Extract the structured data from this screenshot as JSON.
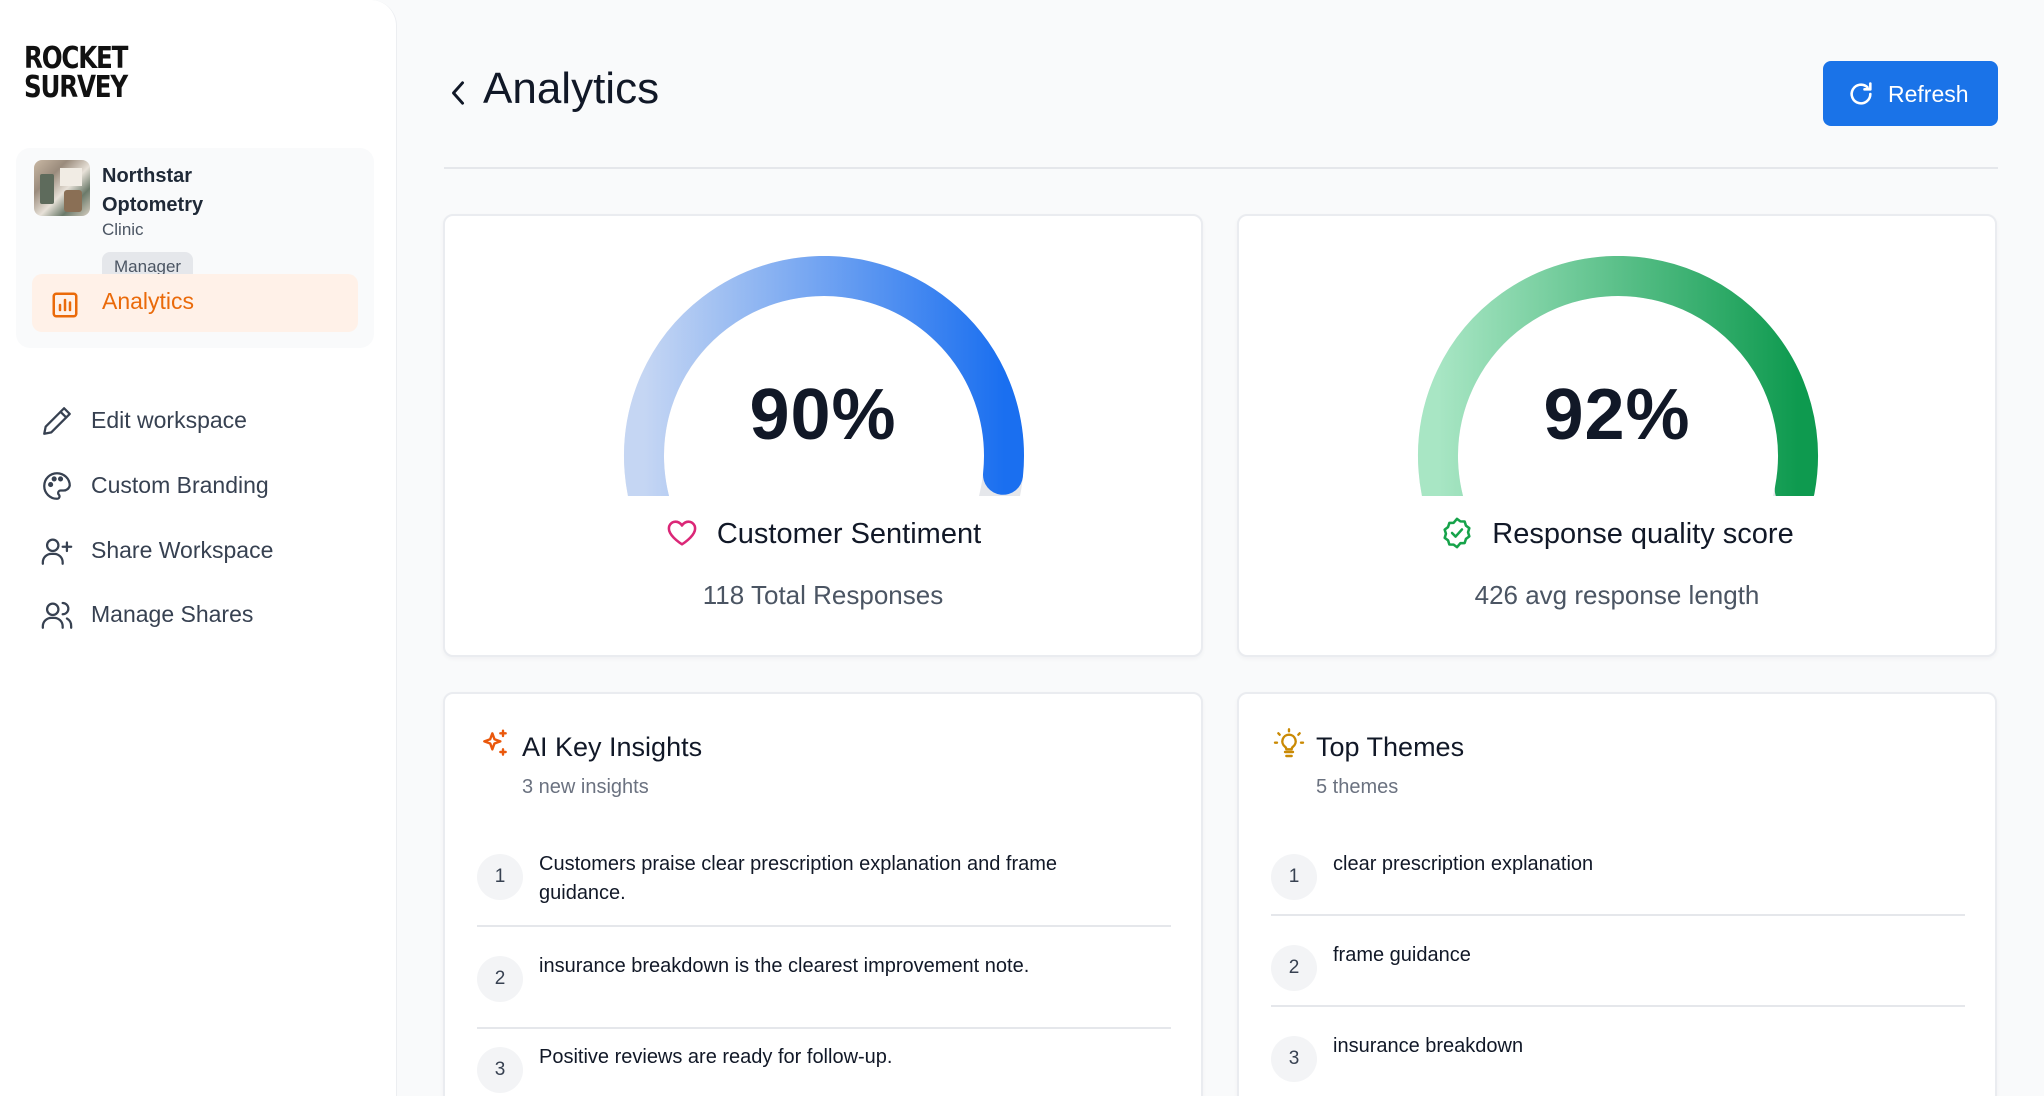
{
  "brand": {
    "logo_line1": "ROCKET",
    "logo_line2": "SURVEY"
  },
  "org": {
    "name": "Northstar Optometry",
    "type": "Clinic",
    "role": "Manager"
  },
  "sidebar": {
    "active_item": {
      "label": "Analytics",
      "icon": "bar-chart-icon",
      "color": "#ea6a0a"
    },
    "items": [
      {
        "label": "Edit workspace",
        "icon": "pencil-icon"
      },
      {
        "label": "Custom Branding",
        "icon": "palette-icon"
      },
      {
        "label": "Share Workspace",
        "icon": "user-plus-icon"
      },
      {
        "label": "Manage Shares",
        "icon": "users-icon"
      }
    ]
  },
  "header": {
    "title": "Analytics",
    "refresh_label": "Refresh",
    "accent": "#1a73e8"
  },
  "gauges": [
    {
      "value_label": "90%",
      "value": 0.9,
      "title": "Customer Sentiment",
      "subtitle": "118 Total Responses",
      "icon": "heart-icon",
      "colors": [
        "#c5d6f3",
        "#1a6ff0"
      ]
    },
    {
      "value_label": "92%",
      "value": 0.92,
      "title": "Response quality score",
      "subtitle": "426 avg response length",
      "icon": "badge-check-icon",
      "colors": [
        "#a8e6c4",
        "#0e9a4f"
      ]
    }
  ],
  "insights": {
    "title": "AI Key Insights",
    "subtitle": "3 new insights",
    "icon": "sparkles-icon",
    "items": [
      {
        "num": "1",
        "text": "Customers praise clear prescription explanation and frame guidance."
      },
      {
        "num": "2",
        "text": "insurance breakdown is the clearest improvement note."
      },
      {
        "num": "3",
        "text": "Positive reviews are ready for follow-up."
      }
    ]
  },
  "themes": {
    "title": "Top Themes",
    "subtitle": "5 themes",
    "icon": "lightbulb-icon",
    "items": [
      {
        "num": "1",
        "text": "clear prescription explanation"
      },
      {
        "num": "2",
        "text": "frame guidance"
      },
      {
        "num": "3",
        "text": "insurance breakdown"
      }
    ]
  }
}
